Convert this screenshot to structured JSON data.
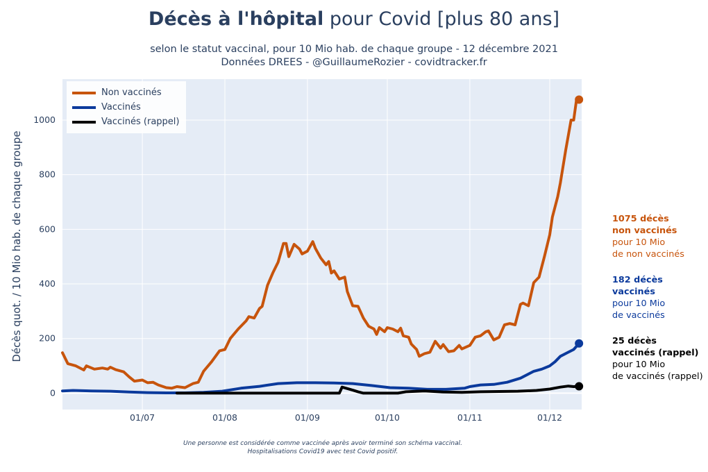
{
  "header": {
    "title_bold": "Décès à l'hôpital",
    "title_rest": " pour Covid [plus 80 ans]",
    "subtitle_line1": "selon le statut vaccinal, pour 10 Mio hab. de chaque groupe - 12 décembre 2021",
    "subtitle_line2": "Données DREES - @GuillaumeRozier - covidtracker.fr"
  },
  "footnote": {
    "line1": "Une personne est considérée comme vaccinée après avoir terminé son schéma vaccinal.",
    "line2": "Hospitalisations Covid19 avec test Covid positif."
  },
  "annotations": [
    {
      "line1": "1075 décès",
      "line2": "non vaccinés",
      "line3": "pour 10 Mio",
      "line4": "de non vaccinés",
      "color": "#c7540c"
    },
    {
      "line1": "182 décès",
      "line2": "vaccinés",
      "line3": "pour 10 Mio",
      "line4": "de vaccinés",
      "color": "#0b3a9c"
    },
    {
      "line1": "25 décès",
      "line2": "vaccinés (rappel)",
      "line3": "pour 10 Mio",
      "line4": "de vaccinés (rappel)",
      "color": "#000000"
    }
  ],
  "colors": {
    "plot_bg": "#e5ecf6",
    "grid": "#ffffff",
    "text": "#2a3f5f"
  },
  "chart_data": {
    "type": "line",
    "title": "Décès à l'hôpital pour Covid [plus 80 ans]",
    "ylabel": "Décès quot. / 10 Mio hab. de chaque groupe",
    "xlabel": "",
    "ylim": [
      -60,
      1150
    ],
    "yticks": [
      0,
      200,
      400,
      600,
      800,
      1000
    ],
    "xlim": [
      "2021-06-01",
      "2021-12-13"
    ],
    "xticks": [
      {
        "date": "2021-07-01",
        "label": "01/07"
      },
      {
        "date": "2021-08-01",
        "label": "01/08"
      },
      {
        "date": "2021-09-01",
        "label": "01/09"
      },
      {
        "date": "2021-10-01",
        "label": "01/10"
      },
      {
        "date": "2021-11-01",
        "label": "01/11"
      },
      {
        "date": "2021-12-01",
        "label": "01/12"
      }
    ],
    "grid": true,
    "legend_position": "top-left",
    "series": [
      {
        "name": "Non vaccinés",
        "color": "#c7540c",
        "end_marker": true,
        "points": [
          [
            "2021-06-01",
            148
          ],
          [
            "2021-06-03",
            108
          ],
          [
            "2021-06-06",
            100
          ],
          [
            "2021-06-09",
            85
          ],
          [
            "2021-06-10",
            100
          ],
          [
            "2021-06-13",
            88
          ],
          [
            "2021-06-16",
            92
          ],
          [
            "2021-06-18",
            88
          ],
          [
            "2021-06-19",
            95
          ],
          [
            "2021-06-21",
            86
          ],
          [
            "2021-06-24",
            78
          ],
          [
            "2021-06-26",
            60
          ],
          [
            "2021-06-28",
            44
          ],
          [
            "2021-07-01",
            48
          ],
          [
            "2021-07-03",
            38
          ],
          [
            "2021-07-05",
            40
          ],
          [
            "2021-07-07",
            30
          ],
          [
            "2021-07-10",
            20
          ],
          [
            "2021-07-12",
            18
          ],
          [
            "2021-07-14",
            24
          ],
          [
            "2021-07-17",
            20
          ],
          [
            "2021-07-20",
            35
          ],
          [
            "2021-07-22",
            40
          ],
          [
            "2021-07-24",
            80
          ],
          [
            "2021-07-27",
            115
          ],
          [
            "2021-07-30",
            155
          ],
          [
            "2021-08-01",
            160
          ],
          [
            "2021-08-03",
            200
          ],
          [
            "2021-08-06",
            235
          ],
          [
            "2021-08-09",
            265
          ],
          [
            "2021-08-10",
            280
          ],
          [
            "2021-08-12",
            275
          ],
          [
            "2021-08-14",
            310
          ],
          [
            "2021-08-15",
            318
          ],
          [
            "2021-08-17",
            395
          ],
          [
            "2021-08-19",
            440
          ],
          [
            "2021-08-21",
            480
          ],
          [
            "2021-08-23",
            548
          ],
          [
            "2021-08-24",
            548
          ],
          [
            "2021-08-25",
            500
          ],
          [
            "2021-08-27",
            545
          ],
          [
            "2021-08-29",
            528
          ],
          [
            "2021-08-30",
            510
          ],
          [
            "2021-09-01",
            520
          ],
          [
            "2021-09-03",
            555
          ],
          [
            "2021-09-04",
            530
          ],
          [
            "2021-09-06",
            495
          ],
          [
            "2021-09-08",
            470
          ],
          [
            "2021-09-09",
            482
          ],
          [
            "2021-09-10",
            440
          ],
          [
            "2021-09-11",
            448
          ],
          [
            "2021-09-13",
            418
          ],
          [
            "2021-09-15",
            425
          ],
          [
            "2021-09-16",
            372
          ],
          [
            "2021-09-18",
            320
          ],
          [
            "2021-09-20",
            318
          ],
          [
            "2021-09-22",
            275
          ],
          [
            "2021-09-24",
            245
          ],
          [
            "2021-09-26",
            235
          ],
          [
            "2021-09-27",
            215
          ],
          [
            "2021-09-28",
            240
          ],
          [
            "2021-09-30",
            225
          ],
          [
            "2021-10-01",
            240
          ],
          [
            "2021-10-03",
            235
          ],
          [
            "2021-10-05",
            225
          ],
          [
            "2021-10-06",
            238
          ],
          [
            "2021-10-07",
            210
          ],
          [
            "2021-10-09",
            205
          ],
          [
            "2021-10-10",
            180
          ],
          [
            "2021-10-12",
            160
          ],
          [
            "2021-10-13",
            135
          ],
          [
            "2021-10-15",
            145
          ],
          [
            "2021-10-17",
            150
          ],
          [
            "2021-10-19",
            190
          ],
          [
            "2021-10-21",
            165
          ],
          [
            "2021-10-22",
            178
          ],
          [
            "2021-10-24",
            152
          ],
          [
            "2021-10-26",
            155
          ],
          [
            "2021-10-28",
            175
          ],
          [
            "2021-10-29",
            162
          ],
          [
            "2021-11-01",
            175
          ],
          [
            "2021-11-03",
            205
          ],
          [
            "2021-11-05",
            210
          ],
          [
            "2021-11-07",
            225
          ],
          [
            "2021-11-08",
            228
          ],
          [
            "2021-11-10",
            195
          ],
          [
            "2021-11-12",
            205
          ],
          [
            "2021-11-14",
            250
          ],
          [
            "2021-11-16",
            255
          ],
          [
            "2021-11-18",
            250
          ],
          [
            "2021-11-20",
            325
          ],
          [
            "2021-11-21",
            330
          ],
          [
            "2021-11-23",
            320
          ],
          [
            "2021-11-25",
            405
          ],
          [
            "2021-11-27",
            425
          ],
          [
            "2021-11-29",
            500
          ],
          [
            "2021-12-01",
            580
          ],
          [
            "2021-12-02",
            645
          ],
          [
            "2021-12-04",
            720
          ],
          [
            "2021-12-05",
            770
          ],
          [
            "2021-12-07",
            890
          ],
          [
            "2021-12-09",
            1000
          ],
          [
            "2021-12-10",
            1000
          ],
          [
            "2021-12-11",
            1070
          ],
          [
            "2021-12-12",
            1075
          ]
        ]
      },
      {
        "name": "Vaccinés",
        "color": "#0b3a9c",
        "end_marker": true,
        "points": [
          [
            "2021-06-01",
            8
          ],
          [
            "2021-06-05",
            10
          ],
          [
            "2021-06-12",
            8
          ],
          [
            "2021-06-19",
            7
          ],
          [
            "2021-06-26",
            4
          ],
          [
            "2021-07-03",
            2
          ],
          [
            "2021-07-10",
            1
          ],
          [
            "2021-07-17",
            1
          ],
          [
            "2021-07-24",
            3
          ],
          [
            "2021-07-31",
            7
          ],
          [
            "2021-08-07",
            18
          ],
          [
            "2021-08-14",
            25
          ],
          [
            "2021-08-21",
            35
          ],
          [
            "2021-08-28",
            38
          ],
          [
            "2021-09-04",
            38
          ],
          [
            "2021-09-11",
            37
          ],
          [
            "2021-09-18",
            35
          ],
          [
            "2021-09-25",
            28
          ],
          [
            "2021-10-02",
            20
          ],
          [
            "2021-10-09",
            18
          ],
          [
            "2021-10-16",
            14
          ],
          [
            "2021-10-23",
            14
          ],
          [
            "2021-10-30",
            18
          ],
          [
            "2021-11-01",
            24
          ],
          [
            "2021-11-05",
            30
          ],
          [
            "2021-11-10",
            32
          ],
          [
            "2021-11-15",
            40
          ],
          [
            "2021-11-20",
            55
          ],
          [
            "2021-11-25",
            80
          ],
          [
            "2021-11-28",
            88
          ],
          [
            "2021-12-01",
            100
          ],
          [
            "2021-12-03",
            115
          ],
          [
            "2021-12-05",
            135
          ],
          [
            "2021-12-08",
            150
          ],
          [
            "2021-12-10",
            160
          ],
          [
            "2021-12-12",
            182
          ]
        ]
      },
      {
        "name": "Vaccinés (rappel)",
        "color": "#000000",
        "end_marker": true,
        "points": [
          [
            "2021-07-14",
            0
          ],
          [
            "2021-09-13",
            0
          ],
          [
            "2021-09-14",
            22
          ],
          [
            "2021-09-17",
            14
          ],
          [
            "2021-09-20",
            5
          ],
          [
            "2021-09-22",
            0
          ],
          [
            "2021-10-05",
            0
          ],
          [
            "2021-10-08",
            5
          ],
          [
            "2021-10-15",
            8
          ],
          [
            "2021-10-22",
            4
          ],
          [
            "2021-10-29",
            3
          ],
          [
            "2021-11-05",
            5
          ],
          [
            "2021-11-12",
            6
          ],
          [
            "2021-11-19",
            7
          ],
          [
            "2021-11-26",
            10
          ],
          [
            "2021-12-01",
            15
          ],
          [
            "2021-12-05",
            22
          ],
          [
            "2021-12-08",
            26
          ],
          [
            "2021-12-10",
            24
          ],
          [
            "2021-12-12",
            25
          ]
        ]
      }
    ]
  }
}
